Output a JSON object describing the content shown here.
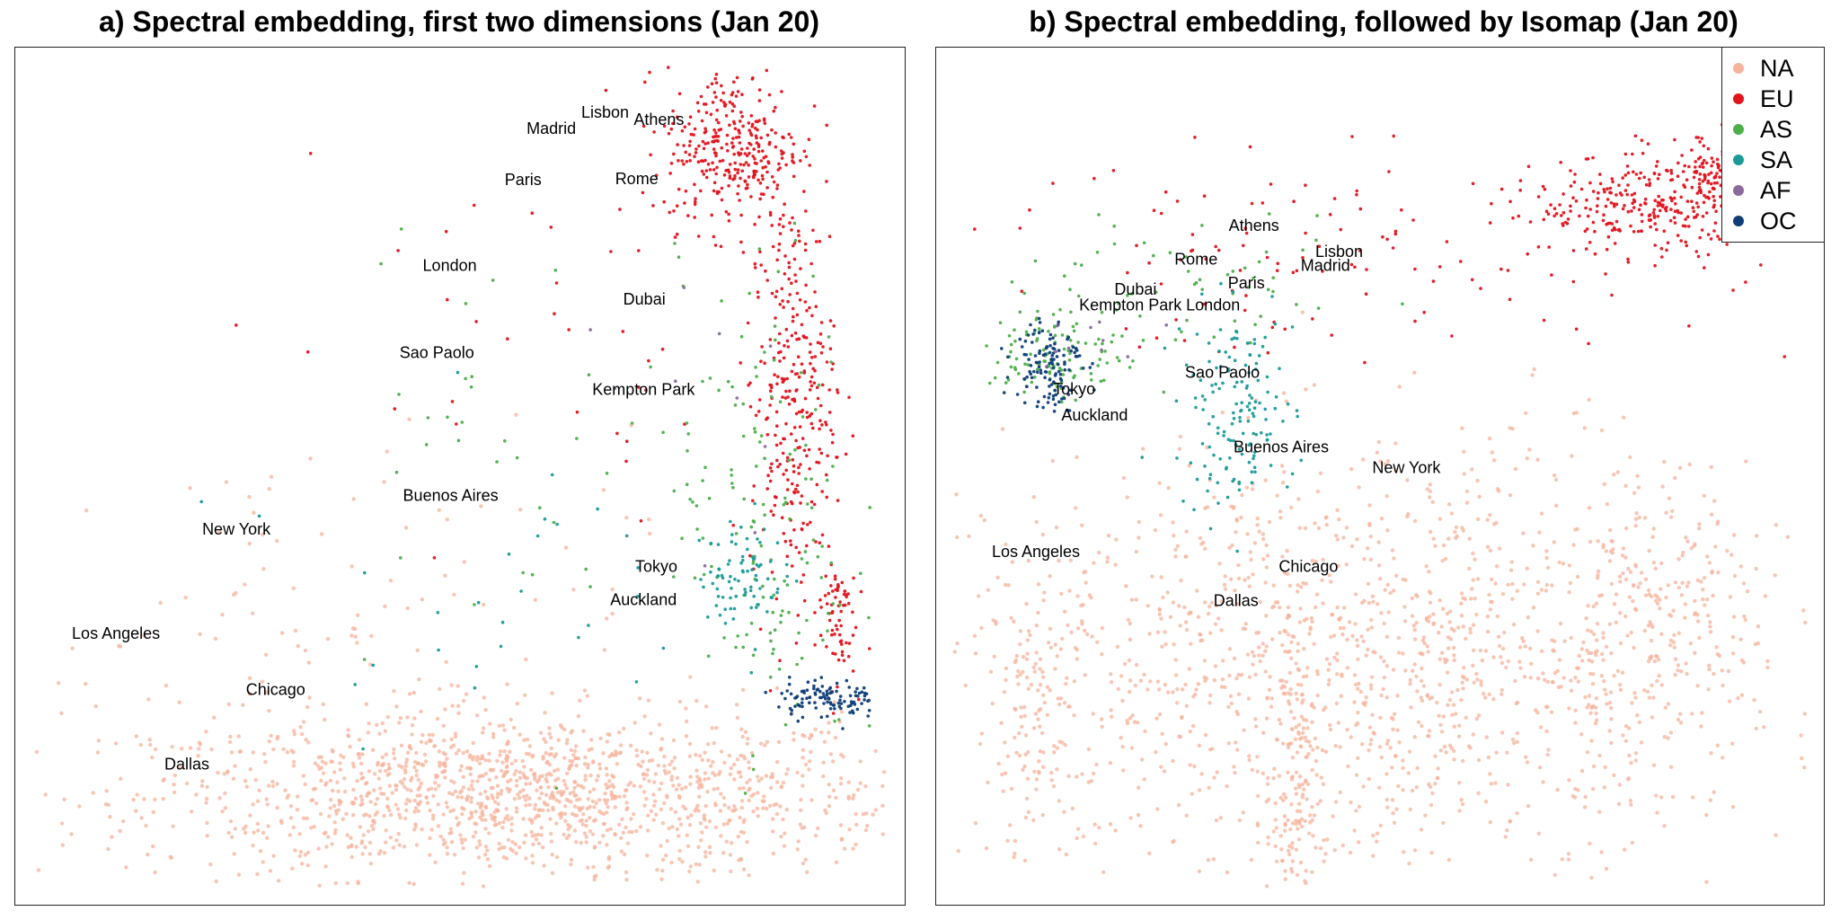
{
  "colors": {
    "NA": "#f7b39b",
    "EU": "#e3131c",
    "AS": "#4daf4a",
    "SA": "#1b9a9a",
    "AF": "#8b6a9c",
    "OC": "#0e3d78"
  },
  "chart_data": [
    {
      "type": "scatter",
      "title": "a) Spectral embedding, first two dimensions (Jan 20)",
      "xlabel": "",
      "ylabel": "",
      "grid": false,
      "xlim": [
        0,
        100
      ],
      "ylim": [
        0,
        100
      ],
      "series": [
        {
          "name": "NA",
          "color": "#f7b39b"
        },
        {
          "name": "EU",
          "color": "#e3131c"
        },
        {
          "name": "AS",
          "color": "#4daf4a"
        },
        {
          "name": "SA",
          "color": "#1b9a9a"
        },
        {
          "name": "AF",
          "color": "#8b6a9c"
        },
        {
          "name": "OC",
          "color": "#0e3d78"
        }
      ],
      "clusters": [
        {
          "series": "NA",
          "cx": 58,
          "cy": 11,
          "sx": 22,
          "sy": 5,
          "n": 1400
        },
        {
          "series": "NA",
          "cx": 30,
          "cy": 28,
          "sx": 20,
          "sy": 14,
          "n": 160
        },
        {
          "series": "EU",
          "cx": 82,
          "cy": 90,
          "sx": 4,
          "sy": 5,
          "n": 320
        },
        {
          "series": "EU",
          "cx": 89,
          "cy": 60,
          "sx": 2.5,
          "sy": 12,
          "n": 300
        },
        {
          "series": "EU",
          "cx": 94,
          "cy": 33,
          "sx": 1.2,
          "sy": 4,
          "n": 70
        },
        {
          "series": "EU",
          "cx": 60,
          "cy": 70,
          "sx": 16,
          "sy": 14,
          "n": 40
        },
        {
          "series": "AS",
          "cx": 86,
          "cy": 45,
          "sx": 5,
          "sy": 15,
          "n": 140
        },
        {
          "series": "AS",
          "cx": 60,
          "cy": 55,
          "sx": 14,
          "sy": 14,
          "n": 40
        },
        {
          "series": "SA",
          "cx": 83,
          "cy": 38,
          "sx": 2.5,
          "sy": 3,
          "n": 80
        },
        {
          "series": "SA",
          "cx": 55,
          "cy": 38,
          "sx": 12,
          "sy": 10,
          "n": 30
        },
        {
          "series": "OC",
          "cx": 93,
          "cy": 23,
          "sx": 3,
          "sy": 1.2,
          "n": 110
        },
        {
          "series": "AF",
          "cx": 80,
          "cy": 60,
          "sx": 8,
          "sy": 12,
          "n": 10
        }
      ],
      "city_labels": [
        {
          "text": "Lisbon",
          "x": 67,
          "y": 94.2
        },
        {
          "text": "Athens",
          "x": 73.3,
          "y": 93.3
        },
        {
          "text": "Madrid",
          "x": 60.7,
          "y": 92.2
        },
        {
          "text": "Paris",
          "x": 57.4,
          "y": 86
        },
        {
          "text": "Rome",
          "x": 70.7,
          "y": 86.1
        },
        {
          "text": "London",
          "x": 48.8,
          "y": 75.5
        },
        {
          "text": "Dubai",
          "x": 71.6,
          "y": 71.4
        },
        {
          "text": "Sao Paolo",
          "x": 47.3,
          "y": 64.9
        },
        {
          "text": "Kempton Park",
          "x": 71.5,
          "y": 60.4
        },
        {
          "text": "Buenos Aires",
          "x": 48.9,
          "y": 47.5
        },
        {
          "text": "New York",
          "x": 23.8,
          "y": 43.4
        },
        {
          "text": "Tokyo",
          "x": 73,
          "y": 38.9
        },
        {
          "text": "Auckland",
          "x": 71.5,
          "y": 34.8
        },
        {
          "text": "Los Angeles",
          "x": 9.7,
          "y": 30.7
        },
        {
          "text": "Chicago",
          "x": 28.4,
          "y": 23.9
        },
        {
          "text": "Dallas",
          "x": 18,
          "y": 14.8
        }
      ]
    },
    {
      "type": "scatter",
      "title": "b) Spectral embedding, followed by Isomap (Jan 20)",
      "xlabel": "",
      "ylabel": "",
      "grid": false,
      "legend_position": "top-right",
      "xlim": [
        0,
        100
      ],
      "ylim": [
        0,
        100
      ],
      "series": [
        {
          "name": "NA",
          "color": "#f7b39b"
        },
        {
          "name": "EU",
          "color": "#e3131c"
        },
        {
          "name": "AS",
          "color": "#4daf4a"
        },
        {
          "name": "SA",
          "color": "#1b9a9a"
        },
        {
          "name": "AF",
          "color": "#8b6a9c"
        },
        {
          "name": "OC",
          "color": "#0e3d78"
        }
      ],
      "clusters": [
        {
          "series": "NA",
          "cx": 50,
          "cy": 27,
          "sx": 22,
          "sy": 13,
          "n": 1300
        },
        {
          "series": "NA",
          "cx": 82,
          "cy": 32,
          "sx": 6,
          "sy": 9,
          "n": 200
        },
        {
          "series": "NA",
          "cx": 10,
          "cy": 22,
          "sx": 4,
          "sy": 10,
          "n": 150
        },
        {
          "series": "NA",
          "cx": 40,
          "cy": 12,
          "sx": 2,
          "sy": 8,
          "n": 140
        },
        {
          "series": "EU",
          "cx": 82,
          "cy": 83,
          "sx": 7,
          "sy": 3,
          "n": 280
        },
        {
          "series": "EU",
          "cx": 90,
          "cy": 86,
          "sx": 2.5,
          "sy": 3,
          "n": 150
        },
        {
          "series": "EU",
          "cx": 45,
          "cy": 77,
          "sx": 22,
          "sy": 6,
          "n": 120
        },
        {
          "series": "AS",
          "cx": 12,
          "cy": 65,
          "sx": 4,
          "sy": 3,
          "n": 110
        },
        {
          "series": "AS",
          "cx": 28,
          "cy": 72,
          "sx": 10,
          "sy": 4,
          "n": 60
        },
        {
          "series": "SA",
          "cx": 33,
          "cy": 58,
          "sx": 3.5,
          "sy": 6,
          "n": 150
        },
        {
          "series": "OC",
          "cx": 11,
          "cy": 64,
          "sx": 2,
          "sy": 3,
          "n": 120
        },
        {
          "series": "AF",
          "cx": 15,
          "cy": 66,
          "sx": 3,
          "sy": 2,
          "n": 10
        }
      ],
      "city_labels": [
        {
          "text": "Athens",
          "x": 35.2,
          "y": 80.4
        },
        {
          "text": "Lisbon",
          "x": 45.2,
          "y": 77.2
        },
        {
          "text": "Madrid",
          "x": 43.6,
          "y": 75.5
        },
        {
          "text": "Rome",
          "x": 28.4,
          "y": 76.3
        },
        {
          "text": "Paris",
          "x": 34.3,
          "y": 73.4
        },
        {
          "text": "Dubai",
          "x": 21.3,
          "y": 72.6
        },
        {
          "text": "Kempton Park",
          "x": 20.7,
          "y": 70.7
        },
        {
          "text": "London",
          "x": 30.4,
          "y": 70.7
        },
        {
          "text": "Tokyo",
          "x": 14.1,
          "y": 60.5
        },
        {
          "text": "Sao Paolo",
          "x": 31.5,
          "y": 62.5
        },
        {
          "text": "Auckland",
          "x": 16.5,
          "y": 57.3
        },
        {
          "text": "Buenos Aires",
          "x": 38.4,
          "y": 53.4
        },
        {
          "text": "New York",
          "x": 53.1,
          "y": 50.9
        },
        {
          "text": "Los Angeles",
          "x": 9.6,
          "y": 40.7
        },
        {
          "text": "Chicago",
          "x": 41.6,
          "y": 38.9
        },
        {
          "text": "Dallas",
          "x": 33.1,
          "y": 34.7
        }
      ]
    }
  ],
  "legend": {
    "items": [
      {
        "label": "NA",
        "color": "#f7b39b"
      },
      {
        "label": "EU",
        "color": "#e3131c"
      },
      {
        "label": "AS",
        "color": "#4daf4a"
      },
      {
        "label": "SA",
        "color": "#1b9a9a"
      },
      {
        "label": "AF",
        "color": "#8b6a9c"
      },
      {
        "label": "OC",
        "color": "#0e3d78"
      }
    ]
  }
}
